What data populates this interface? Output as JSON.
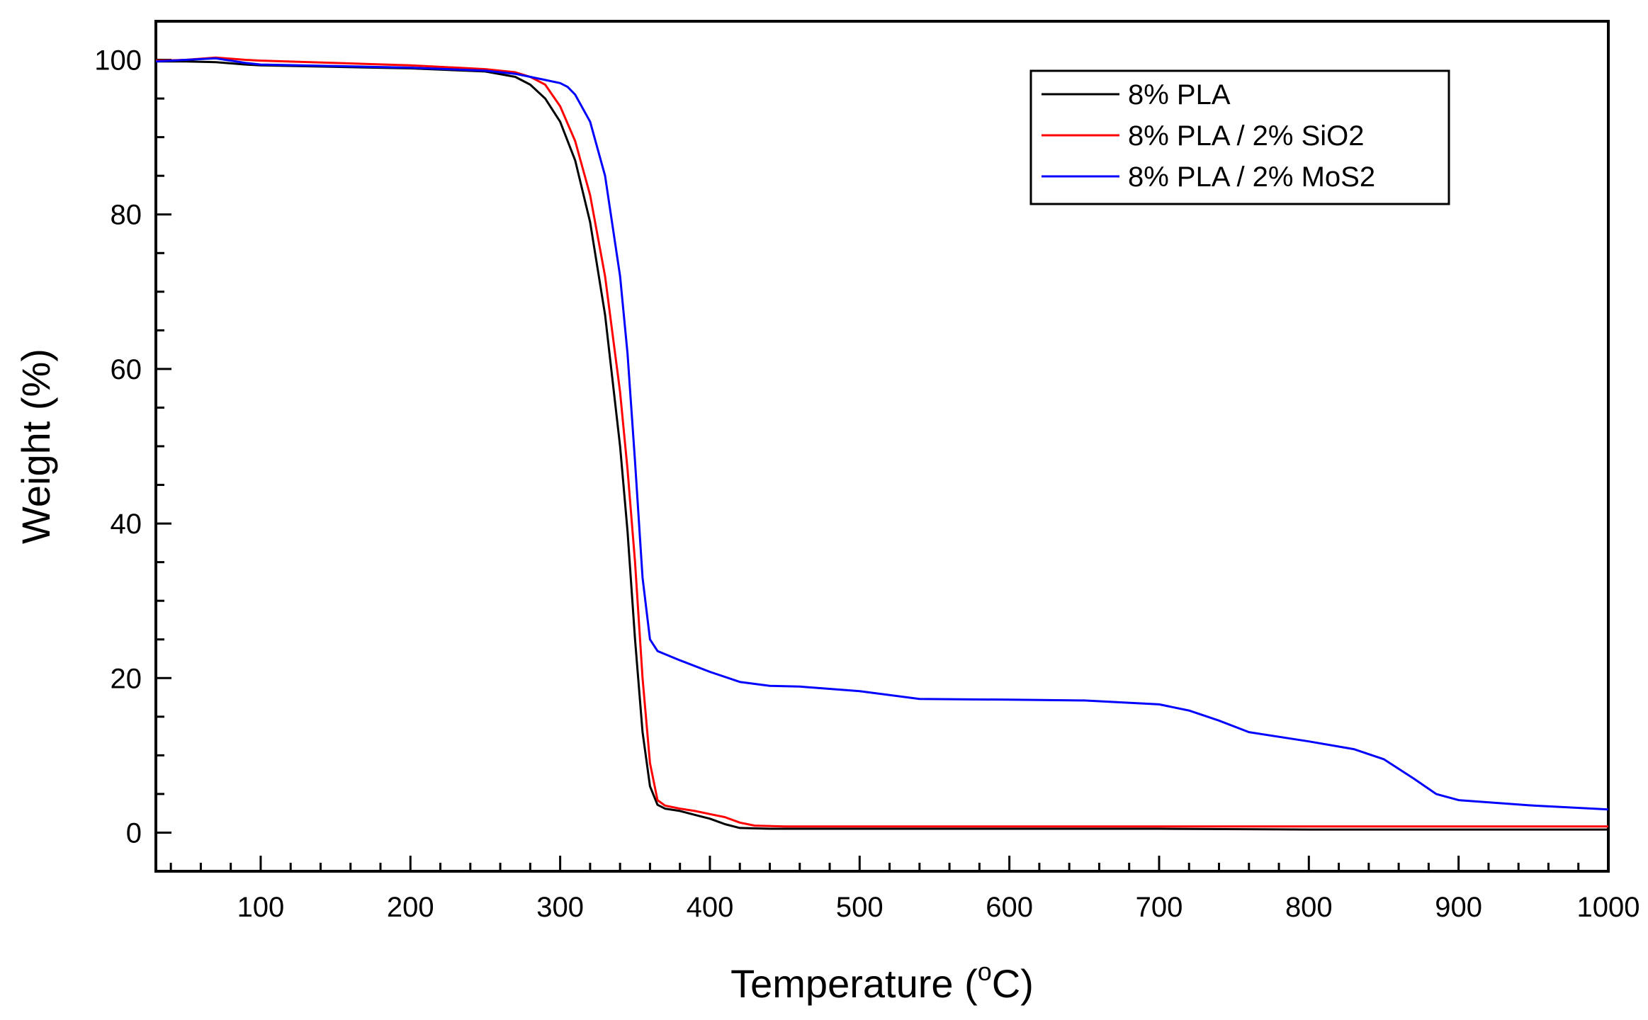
{
  "chart_data": {
    "type": "line",
    "title": "",
    "xlabel": "Temperature (",
    "xlabel_sup": "o",
    "xlabel_suffix": "C)",
    "ylabel": "Weight (%)",
    "xlim": [
      30,
      1000
    ],
    "ylim": [
      -5,
      105
    ],
    "x_ticks": [
      100,
      200,
      300,
      400,
      500,
      600,
      700,
      800,
      900,
      1000
    ],
    "x_tick_labels": [
      "100",
      "200",
      "300",
      "400",
      "500",
      "600",
      "700",
      "800",
      "900",
      "1000"
    ],
    "y_ticks": [
      0,
      20,
      40,
      60,
      80,
      100
    ],
    "y_tick_labels": [
      "0",
      "20",
      "40",
      "60",
      "80",
      "100"
    ],
    "grid": false,
    "legend_position": "top-right",
    "series": [
      {
        "name": "8% PLA",
        "color": "#000000",
        "points": [
          [
            30,
            99.8
          ],
          [
            50,
            99.8
          ],
          [
            70,
            99.7
          ],
          [
            90,
            99.4
          ],
          [
            100,
            99.3
          ],
          [
            150,
            99.1
          ],
          [
            200,
            98.9
          ],
          [
            250,
            98.5
          ],
          [
            270,
            97.8
          ],
          [
            280,
            96.8
          ],
          [
            290,
            95.0
          ],
          [
            300,
            92.0
          ],
          [
            310,
            87.0
          ],
          [
            320,
            79.0
          ],
          [
            330,
            67.0
          ],
          [
            340,
            50.0
          ],
          [
            345,
            39.0
          ],
          [
            350,
            25.0
          ],
          [
            355,
            13.0
          ],
          [
            360,
            6.0
          ],
          [
            365,
            3.6
          ],
          [
            370,
            3.1
          ],
          [
            380,
            2.8
          ],
          [
            390,
            2.3
          ],
          [
            400,
            1.8
          ],
          [
            410,
            1.1
          ],
          [
            420,
            0.6
          ],
          [
            440,
            0.5
          ],
          [
            500,
            0.5
          ],
          [
            600,
            0.5
          ],
          [
            700,
            0.5
          ],
          [
            800,
            0.4
          ],
          [
            900,
            0.4
          ],
          [
            1000,
            0.4
          ]
        ]
      },
      {
        "name": "8% PLA / 2% SiO2",
        "color": "#ff0000",
        "points": [
          [
            30,
            99.9
          ],
          [
            50,
            100.0
          ],
          [
            70,
            100.3
          ],
          [
            90,
            100.0
          ],
          [
            100,
            99.9
          ],
          [
            150,
            99.6
          ],
          [
            200,
            99.3
          ],
          [
            250,
            98.8
          ],
          [
            270,
            98.4
          ],
          [
            280,
            97.8
          ],
          [
            290,
            96.8
          ],
          [
            300,
            94.0
          ],
          [
            310,
            89.5
          ],
          [
            320,
            82.5
          ],
          [
            330,
            72.0
          ],
          [
            340,
            57.0
          ],
          [
            345,
            47.0
          ],
          [
            350,
            35.0
          ],
          [
            355,
            20.0
          ],
          [
            360,
            9.0
          ],
          [
            365,
            4.2
          ],
          [
            370,
            3.5
          ],
          [
            380,
            3.1
          ],
          [
            390,
            2.8
          ],
          [
            400,
            2.4
          ],
          [
            410,
            2.0
          ],
          [
            420,
            1.3
          ],
          [
            430,
            0.9
          ],
          [
            450,
            0.8
          ],
          [
            500,
            0.8
          ],
          [
            600,
            0.8
          ],
          [
            700,
            0.8
          ],
          [
            800,
            0.8
          ],
          [
            900,
            0.8
          ],
          [
            1000,
            0.8
          ]
        ]
      },
      {
        "name": "8% PLA / 2% MoS2",
        "color": "#0000ff",
        "points": [
          [
            30,
            99.8
          ],
          [
            50,
            100.0
          ],
          [
            70,
            100.2
          ],
          [
            90,
            99.6
          ],
          [
            100,
            99.4
          ],
          [
            150,
            99.2
          ],
          [
            200,
            99.0
          ],
          [
            250,
            98.6
          ],
          [
            270,
            98.2
          ],
          [
            280,
            97.8
          ],
          [
            290,
            97.4
          ],
          [
            300,
            97.0
          ],
          [
            305,
            96.5
          ],
          [
            310,
            95.5
          ],
          [
            320,
            92.0
          ],
          [
            330,
            85.0
          ],
          [
            340,
            72.0
          ],
          [
            345,
            62.0
          ],
          [
            350,
            48.0
          ],
          [
            355,
            33.0
          ],
          [
            360,
            25.0
          ],
          [
            365,
            23.5
          ],
          [
            380,
            22.3
          ],
          [
            400,
            20.8
          ],
          [
            420,
            19.5
          ],
          [
            440,
            19.0
          ],
          [
            460,
            18.9
          ],
          [
            500,
            18.3
          ],
          [
            540,
            17.3
          ],
          [
            600,
            17.2
          ],
          [
            650,
            17.1
          ],
          [
            700,
            16.6
          ],
          [
            720,
            15.8
          ],
          [
            740,
            14.5
          ],
          [
            760,
            13.0
          ],
          [
            800,
            11.8
          ],
          [
            830,
            10.8
          ],
          [
            850,
            9.5
          ],
          [
            870,
            7.0
          ],
          [
            885,
            5.0
          ],
          [
            900,
            4.2
          ],
          [
            950,
            3.5
          ],
          [
            1000,
            3.0
          ]
        ]
      }
    ]
  }
}
